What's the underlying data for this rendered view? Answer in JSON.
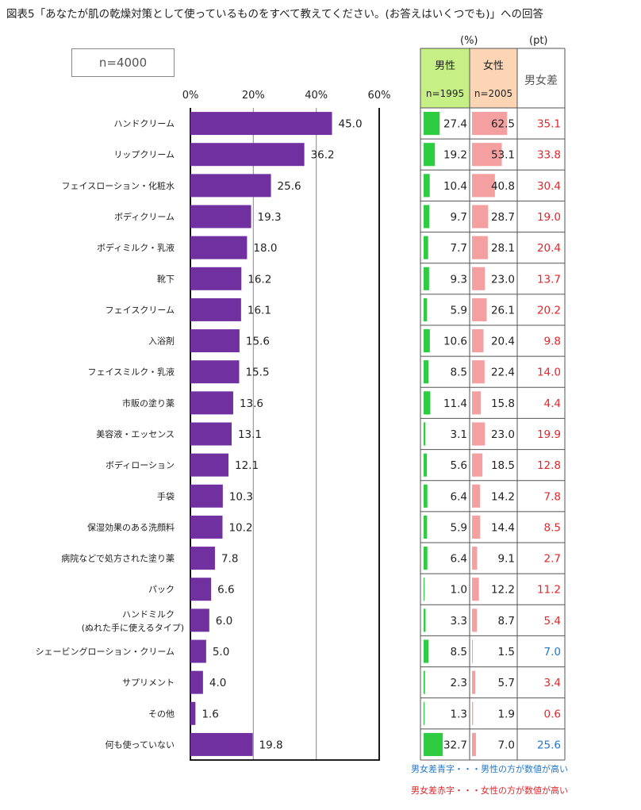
{
  "title": "図表5「あなたが肌の乾燥対策として使っているものをすべて教えてください。(お答えはいくつでも)」への回答",
  "sample_label": "n=4000",
  "unit_percent": "(%)",
  "unit_pt": "(pt)",
  "table_headers": {
    "male": "男性",
    "male_n": "n=1995",
    "female": "女性",
    "female_n": "n=2005",
    "diff": "男女差"
  },
  "notes": {
    "blue": "男女差青字・・・男性の方が数値が高い",
    "red": "男女差赤字・・・女性の方が数値が高い"
  },
  "colors": {
    "bar": "#7030a0",
    "male_bar": "#2ecc40",
    "female_bar": "#f4a0a0",
    "male_header_bg": "#c6ef85",
    "female_header_bg": "#fcd5b5",
    "diff_red": "#e0262a",
    "diff_blue": "#1f77c8"
  },
  "chart_data": {
    "type": "bar",
    "orientation": "horizontal",
    "x_ticks": [
      "0%",
      "20%",
      "40%",
      "60%"
    ],
    "xlim": [
      0,
      60
    ],
    "grid": true,
    "categories": [
      "ハンドクリーム",
      "リップクリーム",
      "フェイスローション・化粧水",
      "ボディクリーム",
      "ボディミルク・乳液",
      "靴下",
      "フェイスクリーム",
      "入浴剤",
      "フェイスミルク・乳液",
      "市販の塗り薬",
      "美容液・エッセンス",
      "ボディローション",
      "手袋",
      "保湿効果のある洗顔料",
      "病院などで処方された塗り薬",
      "パック",
      "ハンドミルク\n(ぬれた手に使えるタイプ)",
      "シェービングローション・クリーム",
      "サプリメント",
      "その他",
      "何も使っていない"
    ],
    "values": [
      45.0,
      36.2,
      25.6,
      19.3,
      18.0,
      16.2,
      16.1,
      15.6,
      15.5,
      13.6,
      13.1,
      12.1,
      10.3,
      10.2,
      7.8,
      6.6,
      6.0,
      5.0,
      4.0,
      1.6,
      19.8
    ],
    "male": [
      27.4,
      19.2,
      10.4,
      9.7,
      7.7,
      9.3,
      5.9,
      10.6,
      8.5,
      11.4,
      3.1,
      5.6,
      6.4,
      5.9,
      6.4,
      1.0,
      3.3,
      8.5,
      2.3,
      1.3,
      32.7
    ],
    "female": [
      62.5,
      53.1,
      40.8,
      28.7,
      28.1,
      23.0,
      26.1,
      20.4,
      22.4,
      15.8,
      23.0,
      18.5,
      14.2,
      14.4,
      9.1,
      12.2,
      8.7,
      1.5,
      5.7,
      1.9,
      7.0
    ],
    "diff": [
      35.1,
      33.8,
      30.4,
      19.0,
      20.4,
      13.7,
      20.2,
      9.8,
      14.0,
      4.4,
      19.9,
      12.8,
      7.8,
      8.5,
      2.7,
      11.2,
      5.4,
      7.0,
      3.4,
      0.6,
      25.6
    ],
    "diff_higher": [
      "female",
      "female",
      "female",
      "female",
      "female",
      "female",
      "female",
      "female",
      "female",
      "female",
      "female",
      "female",
      "female",
      "female",
      "female",
      "female",
      "female",
      "male",
      "female",
      "female",
      "male"
    ]
  }
}
